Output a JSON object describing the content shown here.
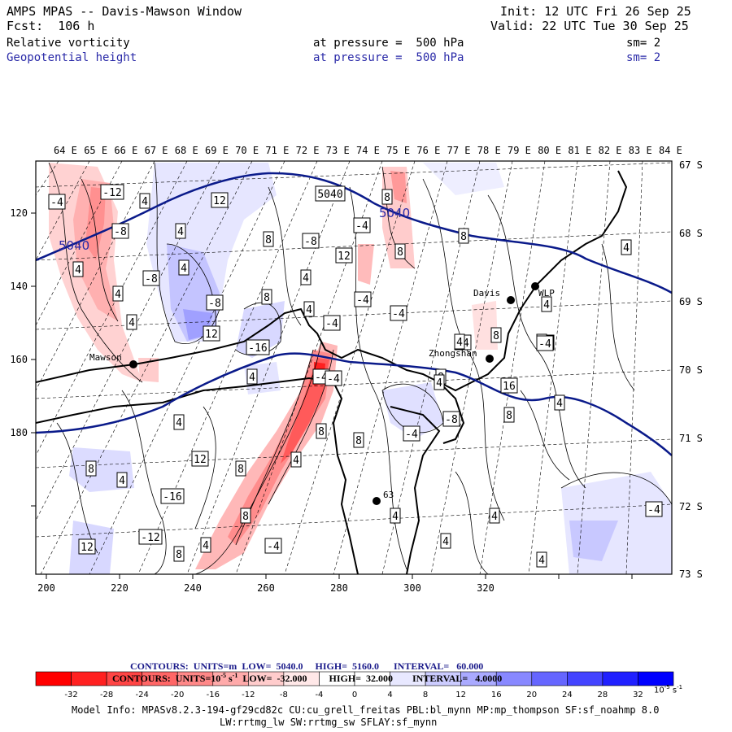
{
  "header": {
    "title": "AMPS MPAS -- Davis-Mawson Window",
    "init": "Init: 12 UTC Fri 26 Sep 25",
    "fcst": "Fcst:  106 h",
    "valid": "Valid: 22 UTC Tue 30 Sep 25",
    "field1": {
      "name": "Relative vorticity",
      "level": "at pressure =  500 hPa",
      "sm": "sm= 2"
    },
    "field2": {
      "name": "Geopotential height",
      "level": "at pressure =  500 hPa",
      "sm": "sm= 2"
    }
  },
  "map": {
    "top_longitudes": [
      "64 E",
      "65 E",
      "66 E",
      "67 E",
      "68 E",
      "69 E",
      "70 E",
      "71 E",
      "72 E",
      "73 E",
      "74 E",
      "75 E",
      "76 E",
      "77 E",
      "78 E",
      "79 E",
      "80 E",
      "81 E",
      "82 E",
      "83 E",
      "84 E"
    ],
    "right_latitudes": [
      "67 S",
      "68 S",
      "69 S",
      "70 S",
      "71 S",
      "72 S",
      "73 S"
    ],
    "x_ticks": [
      "200",
      "220",
      "240",
      "260",
      "280",
      "300",
      "320"
    ],
    "y_ticks": [
      "120",
      "140",
      "160",
      "180"
    ],
    "stations": [
      "Mawson",
      "Davis",
      "WLP",
      "Zhongshan",
      "63"
    ],
    "height_labels": [
      "5040",
      "5040"
    ],
    "contour_labels": [
      "-4",
      "-12",
      "4",
      "12",
      "-8",
      "4",
      "8",
      "-8",
      "5040",
      "-4",
      "8",
      "4",
      "4",
      "4",
      "-8",
      "4",
      "12",
      "8",
      "8",
      "4",
      "-8",
      "8",
      "-4",
      "-4",
      "4",
      "-4",
      "-4",
      "4",
      "16",
      "12",
      "-16",
      "4",
      "-4",
      "-4",
      "8",
      "16",
      "4",
      "4",
      "8",
      "8",
      "-8",
      "-4",
      "8",
      "4",
      "12",
      "8",
      "4",
      "8",
      "-16",
      "-12",
      "8",
      "4",
      "4",
      "4",
      "4",
      "4",
      "-4",
      "12",
      "4",
      "-4",
      "-4",
      "8",
      "8",
      "4",
      "4",
      "4"
    ]
  },
  "contour_info": {
    "line1": {
      "label": "CONTOURS:  UNITS=m",
      "low": "LOW=  5040.0",
      "high": "HIGH=  5160.0",
      "interval": "INTERVAL=   60.000"
    },
    "line2": {
      "label": "CONTOURS:  UNITS=10",
      "exp": "-5",
      "unit": "s",
      "uexp": "-1",
      "low": "LOW=  -32.000",
      "high": "HIGH=  32.000",
      "interval": "INTERVAL=   4.0000"
    }
  },
  "colorbar": {
    "ticks": [
      "-32",
      "-28",
      "-24",
      "-20",
      "-16",
      "-12",
      "-8",
      "-4",
      "0",
      "4",
      "8",
      "12",
      "16",
      "20",
      "24",
      "28",
      "32"
    ],
    "colors": [
      "#ff0000",
      "#ff2020",
      "#ff4444",
      "#ff6666",
      "#ff8888",
      "#ffaaaa",
      "#ffcccc",
      "#ffe8e8",
      "#ffffff",
      "#ffffff",
      "#e8e8ff",
      "#ccccff",
      "#aaaaff",
      "#8888ff",
      "#6666ff",
      "#4444ff",
      "#2020ff",
      "#0000ff"
    ],
    "unit": "10",
    "unit_exp": "-5",
    "unit_s": "s",
    "unit_s_exp": "-1"
  },
  "model_info": {
    "line1": "Model Info: MPASv8.2.3-194-gf29cd82c CU:cu_grell_freitas PBL:bl_mynn MP:mp_thompson SF:sf_noahmp 8.0",
    "line2": "LW:rrtmg_lw SW:rrtmg_sw SFLAY:sf_mynn"
  },
  "colors": {
    "height_contour": "#0a1a8a",
    "header_blue": "#2a2aa8",
    "legend_blue": "#1a1a8a"
  }
}
